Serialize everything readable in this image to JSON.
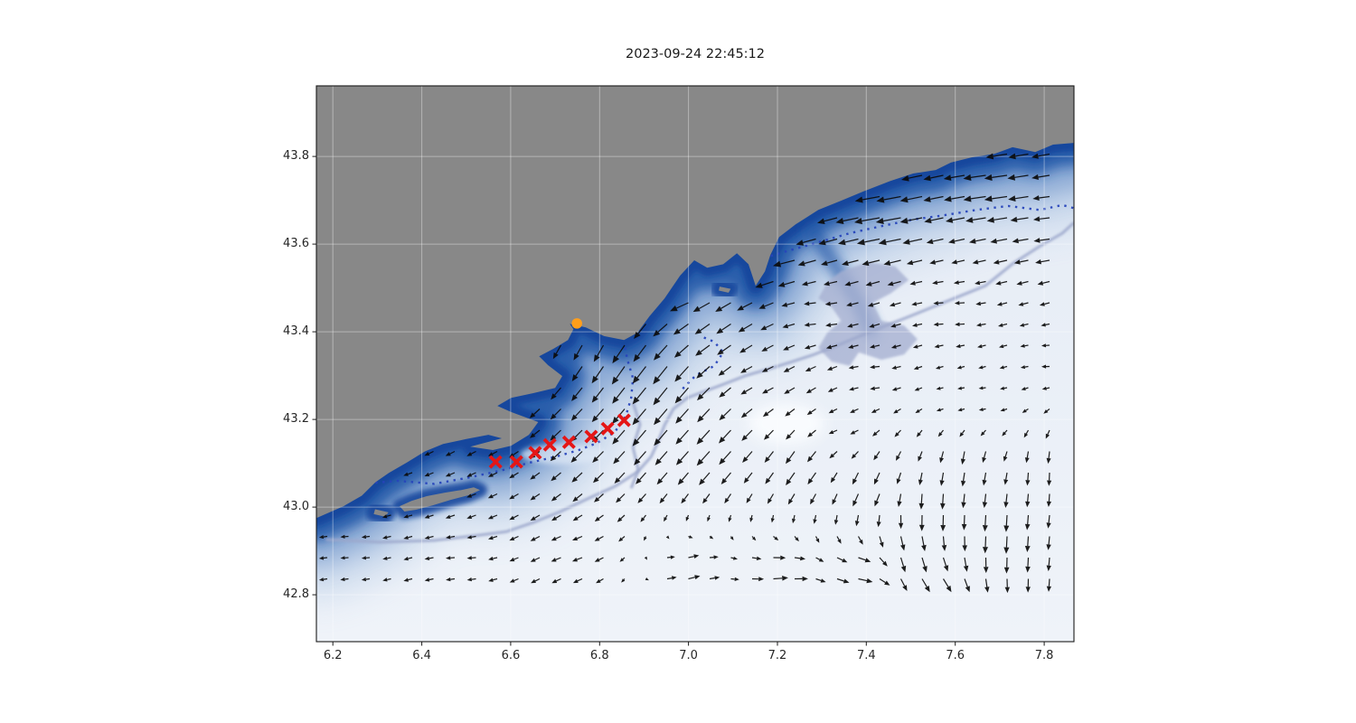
{
  "title": "2023-09-24 22:45:12",
  "chart_data": {
    "type": "heatmap",
    "description": "Matplotlib map of the Cote d'Azur coastal ocean (lon 6.2-7.8 E, lat 42.8-43.8 N) at timestamp 2023-09-24 22:45:12. Blue shaded field strongest along the coastline fading to near-white offshore, black quiver arrows showing surface current direction, gray land mask, a drifter trajectory of red x markers and an orange release point on the coast near lon 6.75 / lat 43.42.",
    "title": "2023-09-24 22:45:12",
    "xlabel": "",
    "ylabel": "",
    "xlim": [
      6.163,
      7.867
    ],
    "ylim": [
      42.693,
      43.961
    ],
    "x_ticks": [
      6.2,
      6.4,
      6.6,
      6.8,
      7.0,
      7.2,
      7.4,
      7.6,
      7.8
    ],
    "x_tick_labels": [
      "6.2",
      "6.4",
      "6.6",
      "6.8",
      "7.0",
      "7.2",
      "7.4",
      "7.6",
      "7.8"
    ],
    "y_ticks": [
      42.8,
      43.0,
      43.2,
      43.4,
      43.6,
      43.8
    ],
    "y_tick_labels": [
      "42.8",
      "43.0",
      "43.2",
      "43.4",
      "43.6",
      "43.8"
    ],
    "grid": true,
    "legend": "none",
    "colors": {
      "land_gray": "#888888",
      "sea_light_top": "#e4ebf5",
      "sea_light_bottom": "#eff3f9",
      "coastal_outer_band": "#9db9dd",
      "coastal_mid_band": "#5e88c4",
      "coastal_inner_band": "#2458a8",
      "coastal_core_band": "#16479d",
      "navy_contour": "#2744ba",
      "lavender_contour": "#9da8cc",
      "lavender_patch": "#a7b1d2",
      "grid_line": "rgba(255,255,255,0.38)",
      "arrow": "#0b0b0b",
      "trajectory_red": "#e51616",
      "release_orange": "#ff9e1b",
      "spine": "#1a1a1a",
      "tick_text": "#262626"
    },
    "land": {
      "coastline": [
        [
          6.163,
          42.975
        ],
        [
          6.224,
          43.002
        ],
        [
          6.265,
          43.026
        ],
        [
          6.296,
          43.057
        ],
        [
          6.326,
          43.078
        ],
        [
          6.367,
          43.102
        ],
        [
          6.407,
          43.127
        ],
        [
          6.448,
          43.144
        ],
        [
          6.499,
          43.155
        ],
        [
          6.55,
          43.165
        ],
        [
          6.58,
          43.157
        ],
        [
          6.509,
          43.138
        ],
        [
          6.56,
          43.13
        ],
        [
          6.601,
          43.14
        ],
        [
          6.641,
          43.165
        ],
        [
          6.662,
          43.194
        ],
        [
          6.601,
          43.217
        ],
        [
          6.57,
          43.231
        ],
        [
          6.601,
          43.249
        ],
        [
          6.651,
          43.26
        ],
        [
          6.7,
          43.272
        ],
        [
          6.716,
          43.299
        ],
        [
          6.684,
          43.324
        ],
        [
          6.664,
          43.344
        ],
        [
          6.696,
          43.361
        ],
        [
          6.729,
          43.381
        ],
        [
          6.741,
          43.406
        ],
        [
          6.733,
          43.418
        ],
        [
          6.769,
          43.41
        ],
        [
          6.81,
          43.39
        ],
        [
          6.855,
          43.381
        ],
        [
          6.885,
          43.398
        ],
        [
          6.912,
          43.435
        ],
        [
          6.946,
          43.476
        ],
        [
          6.981,
          43.528
        ],
        [
          7.013,
          43.563
        ],
        [
          7.042,
          43.546
        ],
        [
          7.078,
          43.554
        ],
        [
          7.109,
          43.579
        ],
        [
          7.135,
          43.554
        ],
        [
          7.151,
          43.505
        ],
        [
          7.172,
          43.538
        ],
        [
          7.184,
          43.575
        ],
        [
          7.204,
          43.616
        ],
        [
          7.241,
          43.645
        ],
        [
          7.292,
          43.678
        ],
        [
          7.343,
          43.699
        ],
        [
          7.393,
          43.72
        ],
        [
          7.454,
          43.744
        ],
        [
          7.505,
          43.761
        ],
        [
          7.556,
          43.769
        ],
        [
          7.59,
          43.786
        ],
        [
          7.637,
          43.798
        ],
        [
          7.688,
          43.806
        ],
        [
          7.729,
          43.821
        ],
        [
          7.78,
          43.81
        ],
        [
          7.82,
          43.827
        ],
        [
          7.867,
          43.831
        ]
      ],
      "close_corners": [
        [
          7.867,
          43.961
        ],
        [
          6.163,
          43.961
        ]
      ],
      "islands": [
        [
          [
            6.35,
            43.002
          ],
          [
            6.377,
            43.014
          ],
          [
            6.411,
            43.025
          ],
          [
            6.452,
            43.033
          ],
          [
            6.489,
            43.039
          ],
          [
            6.517,
            43.045
          ],
          [
            6.531,
            43.039
          ],
          [
            6.505,
            43.027
          ],
          [
            6.464,
            43.016
          ],
          [
            6.424,
            43.004
          ],
          [
            6.387,
            42.994
          ],
          [
            6.361,
            42.99
          ]
        ],
        [
          [
            6.295,
            42.995
          ],
          [
            6.325,
            42.988
          ],
          [
            6.318,
            42.978
          ],
          [
            6.292,
            42.984
          ]
        ],
        [
          [
            7.07,
            43.503
          ],
          [
            7.095,
            43.498
          ],
          [
            7.09,
            43.489
          ],
          [
            7.068,
            43.494
          ]
        ]
      ]
    },
    "contours": {
      "navy_dotted": [
        [
          [
            6.184,
            43.043
          ],
          [
            6.265,
            43.053
          ],
          [
            6.346,
            43.06
          ],
          [
            6.428,
            43.053
          ],
          [
            6.509,
            43.068
          ],
          [
            6.58,
            43.084
          ],
          [
            6.641,
            43.101
          ],
          [
            6.702,
            43.115
          ],
          [
            6.753,
            43.13
          ],
          [
            6.794,
            43.146
          ],
          [
            6.834,
            43.171
          ],
          [
            6.859,
            43.208
          ],
          [
            6.871,
            43.249
          ],
          [
            6.875,
            43.294
          ],
          [
            6.863,
            43.335
          ],
          [
            6.855,
            43.373
          ]
        ],
        [
          [
            7.139,
            43.559
          ],
          [
            7.221,
            43.584
          ],
          [
            7.292,
            43.604
          ],
          [
            7.363,
            43.625
          ],
          [
            7.434,
            43.641
          ],
          [
            7.505,
            43.656
          ],
          [
            7.576,
            43.666
          ],
          [
            7.647,
            43.678
          ],
          [
            7.719,
            43.687
          ],
          [
            7.79,
            43.678
          ],
          [
            7.841,
            43.689
          ],
          [
            7.867,
            43.682
          ]
        ],
        [
          [
            6.987,
            43.27
          ],
          [
            7.017,
            43.301
          ],
          [
            7.058,
            43.322
          ],
          [
            7.078,
            43.353
          ],
          [
            7.058,
            43.377
          ],
          [
            7.027,
            43.39
          ]
        ]
      ],
      "lavender_lines": [
        [
          [
            6.184,
            42.926
          ],
          [
            6.306,
            42.92
          ],
          [
            6.428,
            42.924
          ],
          [
            6.529,
            42.936
          ],
          [
            6.59,
            42.944
          ],
          [
            6.651,
            42.965
          ],
          [
            6.712,
            42.99
          ],
          [
            6.773,
            43.019
          ],
          [
            6.834,
            43.047
          ],
          [
            6.885,
            43.08
          ],
          [
            6.916,
            43.115
          ],
          [
            6.932,
            43.15
          ],
          [
            6.946,
            43.187
          ],
          [
            6.966,
            43.224
          ],
          [
            6.997,
            43.249
          ],
          [
            7.038,
            43.265
          ],
          [
            7.078,
            43.28
          ],
          [
            7.129,
            43.3
          ],
          [
            7.18,
            43.315
          ],
          [
            7.231,
            43.331
          ],
          [
            7.282,
            43.348
          ],
          [
            7.333,
            43.368
          ],
          [
            7.383,
            43.389
          ],
          [
            7.434,
            43.41
          ],
          [
            7.485,
            43.43
          ],
          [
            7.546,
            43.455
          ],
          [
            7.607,
            43.48
          ],
          [
            7.668,
            43.505
          ],
          [
            7.729,
            43.555
          ],
          [
            7.79,
            43.595
          ],
          [
            7.841,
            43.625
          ],
          [
            7.867,
            43.649
          ]
        ],
        [
          [
            6.875,
            43.239
          ],
          [
            6.891,
            43.188
          ],
          [
            6.875,
            43.136
          ],
          [
            6.887,
            43.085
          ],
          [
            6.871,
            43.043
          ]
        ]
      ],
      "lavender_patch": [
        [
          7.343,
          43.538
        ],
        [
          7.404,
          43.559
        ],
        [
          7.465,
          43.549
        ],
        [
          7.495,
          43.518
        ],
        [
          7.454,
          43.487
        ],
        [
          7.414,
          43.466
        ],
        [
          7.434,
          43.425
        ],
        [
          7.485,
          43.414
        ],
        [
          7.515,
          43.383
        ],
        [
          7.485,
          43.348
        ],
        [
          7.434,
          43.336
        ],
        [
          7.383,
          43.353
        ],
        [
          7.363,
          43.322
        ],
        [
          7.322,
          43.332
        ],
        [
          7.292,
          43.363
        ],
        [
          7.312,
          43.398
        ],
        [
          7.343,
          43.425
        ],
        [
          7.322,
          43.456
        ],
        [
          7.292,
          43.476
        ],
        [
          7.312,
          43.513
        ]
      ]
    },
    "quiver": {
      "grid_spacing_px": 23.5,
      "control_vectors_lon_lat_dirdeg_lenpx": [
        [
          7.0,
          43.52,
          195,
          26
        ],
        [
          7.2,
          43.6,
          193,
          28
        ],
        [
          7.45,
          43.67,
          190,
          29
        ],
        [
          7.7,
          43.73,
          188,
          26
        ],
        [
          7.85,
          43.66,
          186,
          18
        ],
        [
          7.3,
          43.44,
          184,
          13
        ],
        [
          7.6,
          43.44,
          181,
          11
        ],
        [
          7.82,
          43.33,
          180,
          9
        ],
        [
          7.42,
          43.3,
          183,
          11
        ],
        [
          7.68,
          43.25,
          182,
          8
        ],
        [
          7.05,
          43.41,
          215,
          20
        ],
        [
          7.18,
          43.3,
          205,
          14
        ],
        [
          6.85,
          43.35,
          235,
          26
        ],
        [
          6.95,
          43.3,
          232,
          26
        ],
        [
          6.92,
          43.2,
          230,
          24
        ],
        [
          7.05,
          43.15,
          228,
          22
        ],
        [
          7.25,
          43.1,
          235,
          18
        ],
        [
          7.4,
          43.05,
          245,
          16
        ],
        [
          6.75,
          43.15,
          225,
          18
        ],
        [
          6.65,
          43.12,
          215,
          13
        ],
        [
          6.57,
          43.09,
          205,
          11
        ],
        [
          6.74,
          43.44,
          250,
          16
        ],
        [
          6.82,
          43.4,
          245,
          20
        ],
        [
          6.35,
          43.01,
          195,
          10
        ],
        [
          6.5,
          43.03,
          200,
          11
        ],
        [
          6.25,
          42.9,
          183,
          9
        ],
        [
          6.5,
          42.89,
          182,
          10
        ],
        [
          6.75,
          42.9,
          200,
          12
        ],
        [
          7.0,
          42.85,
          15,
          14
        ],
        [
          7.2,
          42.84,
          5,
          17
        ],
        [
          7.38,
          42.85,
          350,
          17
        ],
        [
          7.55,
          42.82,
          305,
          18
        ],
        [
          7.55,
          43.0,
          268,
          19
        ],
        [
          7.7,
          42.95,
          267,
          20
        ],
        [
          7.62,
          43.1,
          262,
          16
        ],
        [
          7.8,
          43.08,
          268,
          15
        ],
        [
          7.5,
          42.9,
          285,
          18
        ],
        [
          7.6,
          43.25,
          185,
          8
        ],
        [
          7.35,
          43.18,
          200,
          10
        ]
      ]
    },
    "trajectory": {
      "marker": "x",
      "points": [
        [
          6.566,
          43.103
        ],
        [
          6.613,
          43.103
        ],
        [
          6.655,
          43.124
        ],
        [
          6.688,
          43.142
        ],
        [
          6.731,
          43.148
        ],
        [
          6.781,
          43.161
        ],
        [
          6.818,
          43.179
        ],
        [
          6.855,
          43.198
        ]
      ]
    },
    "release_point": {
      "marker": "circle",
      "point": [
        6.749,
        43.419
      ]
    }
  }
}
